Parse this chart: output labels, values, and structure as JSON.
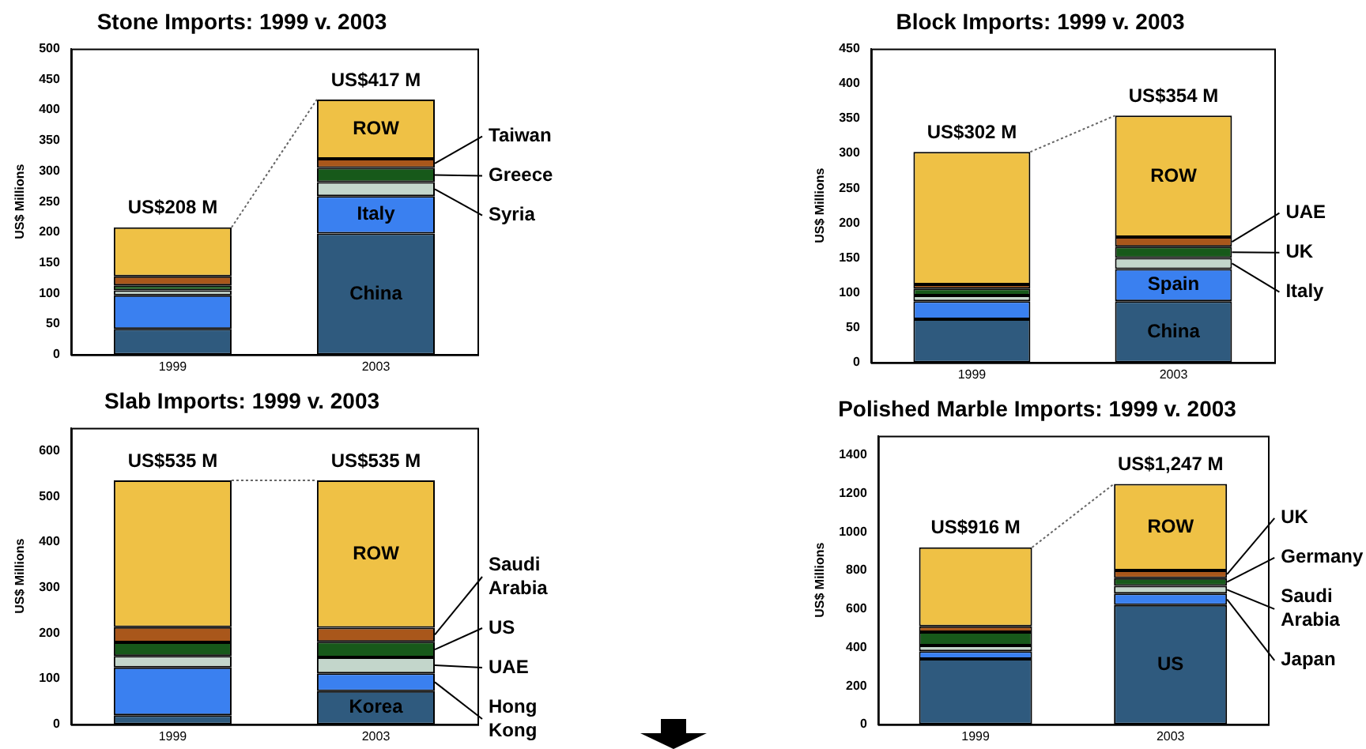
{
  "chart_data": [
    {
      "type": "bar",
      "title": "Stone Imports: 1999 v. 2003",
      "ylabel": "US$ Millions",
      "categories": [
        "1999",
        "2003"
      ],
      "stacked": true,
      "legend": false,
      "grid": false,
      "ylim": [
        0,
        500
      ],
      "yticks": [
        0,
        50,
        100,
        150,
        200,
        250,
        300,
        350,
        400,
        450,
        500
      ],
      "totals": [
        "US$208 M",
        "US$417 M"
      ],
      "series": [
        {
          "name": "China",
          "color": "#2f5a7e",
          "values": [
            42,
            198
          ]
        },
        {
          "name": "Italy",
          "color": "#3a80f0",
          "values": [
            55,
            61
          ]
        },
        {
          "name": "Syria",
          "color": "#c3d6cb",
          "values": [
            8,
            23
          ]
        },
        {
          "name": "Greece",
          "color": "#17591a",
          "values": [
            8,
            23
          ]
        },
        {
          "name": "Taiwan",
          "color": "#a9571b",
          "values": [
            15,
            15
          ]
        },
        {
          "name": "ROW",
          "color": "#efc145",
          "values": [
            80,
            97
          ]
        }
      ]
    },
    {
      "type": "bar",
      "title": "Block Imports: 1999 v. 2003",
      "ylabel": "US$ Millions",
      "categories": [
        "1999",
        "2003"
      ],
      "stacked": true,
      "legend": false,
      "grid": false,
      "ylim": [
        0,
        450
      ],
      "yticks": [
        0,
        50,
        100,
        150,
        200,
        250,
        300,
        350,
        400,
        450
      ],
      "totals": [
        "US$302 M",
        "US$354 M"
      ],
      "series": [
        {
          "name": "China",
          "color": "#2f5a7e",
          "values": [
            62,
            88
          ]
        },
        {
          "name": "Spain",
          "color": "#3a80f0",
          "values": [
            26,
            46
          ]
        },
        {
          "name": "Italy",
          "color": "#c3d6cb",
          "values": [
            8,
            16
          ]
        },
        {
          "name": "UK",
          "color": "#17591a",
          "values": [
            10,
            16
          ]
        },
        {
          "name": "UAE",
          "color": "#a9571b",
          "values": [
            6,
            14
          ]
        },
        {
          "name": "ROW",
          "color": "#efc145",
          "values": [
            190,
            174
          ]
        }
      ]
    },
    {
      "type": "bar",
      "title": "Slab Imports: 1999 v. 2003",
      "ylabel": "US$ Millions",
      "categories": [
        "1999",
        "2003"
      ],
      "stacked": true,
      "legend": false,
      "grid": false,
      "ylim": [
        0,
        650
      ],
      "yticks": [
        0,
        100,
        200,
        300,
        400,
        500,
        600
      ],
      "totals": [
        "US$535 M",
        "US$535 M"
      ],
      "series": [
        {
          "name": "Korea",
          "color": "#2f5a7e",
          "values": [
            20,
            73
          ]
        },
        {
          "name": "Hong Kong",
          "color": "#3a80f0",
          "values": [
            105,
            39
          ]
        },
        {
          "name": "UAE",
          "color": "#c3d6cb",
          "values": [
            25,
            35
          ]
        },
        {
          "name": "US",
          "color": "#17591a",
          "values": [
            30,
            34
          ]
        },
        {
          "name": "Saudi Arabia",
          "color": "#a9571b",
          "values": [
            33,
            31
          ]
        },
        {
          "name": "ROW",
          "color": "#efc145",
          "values": [
            322,
            323
          ]
        }
      ]
    },
    {
      "type": "bar",
      "title": "Polished Marble Imports: 1999 v. 2003",
      "ylabel": "US$ Millions",
      "categories": [
        "1999",
        "2003"
      ],
      "stacked": true,
      "legend": false,
      "grid": false,
      "ylim": [
        0,
        1500
      ],
      "yticks": [
        0,
        200,
        400,
        600,
        800,
        1000,
        1200,
        1400
      ],
      "totals": [
        "US$916 M",
        "US$1,247 M"
      ],
      "series": [
        {
          "name": "US",
          "color": "#2f5a7e",
          "values": [
            340,
            620
          ]
        },
        {
          "name": "Japan",
          "color": "#3a80f0",
          "values": [
            40,
            60
          ]
        },
        {
          "name": "Saudi Arabia",
          "color": "#c3d6cb",
          "values": [
            30,
            40
          ]
        },
        {
          "name": "Germany",
          "color": "#17591a",
          "values": [
            70,
            40
          ]
        },
        {
          "name": "UK",
          "color": "#a9571b",
          "values": [
            30,
            40
          ]
        },
        {
          "name": "ROW",
          "color": "#efc145",
          "values": [
            410,
            450
          ]
        }
      ]
    }
  ]
}
